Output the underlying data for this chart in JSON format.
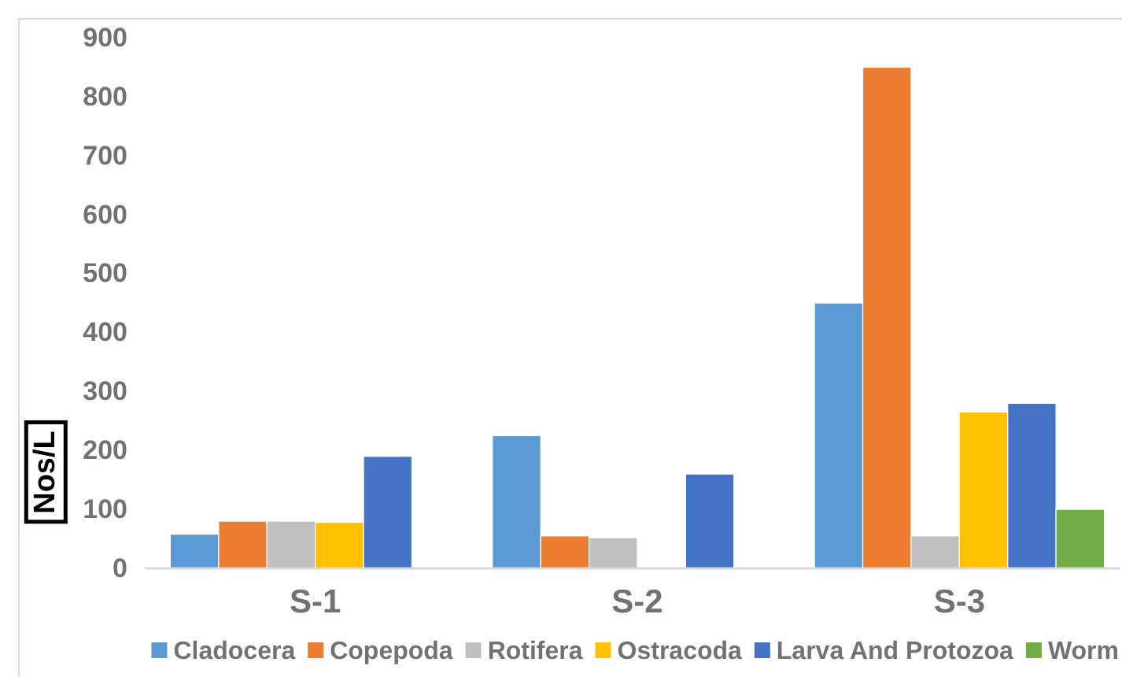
{
  "chart_data": {
    "type": "bar",
    "ylabel": "Nos/L",
    "categories": [
      "S-1",
      "S-2",
      "S-3"
    ],
    "series": [
      {
        "name": "Cladocera",
        "color": "#5b9bd5",
        "values": [
          58,
          225,
          450
        ]
      },
      {
        "name": "Copepoda",
        "color": "#ed7d31",
        "values": [
          80,
          55,
          850
        ]
      },
      {
        "name": "Rotifera",
        "color": "#bfbfbf",
        "values": [
          80,
          52,
          55
        ]
      },
      {
        "name": "Ostracoda",
        "color": "#ffc000",
        "values": [
          78,
          null,
          265
        ]
      },
      {
        "name": "Larva And Protozoa",
        "color": "#4472c4",
        "values": [
          190,
          160,
          280
        ]
      },
      {
        "name": "Worm",
        "color": "#70ad47",
        "values": [
          null,
          null,
          100
        ]
      }
    ],
    "ylim": [
      0,
      900
    ],
    "yticks": [
      0,
      100,
      200,
      300,
      400,
      500,
      600,
      700,
      800,
      900
    ],
    "grid": false,
    "legend": "bottom"
  }
}
